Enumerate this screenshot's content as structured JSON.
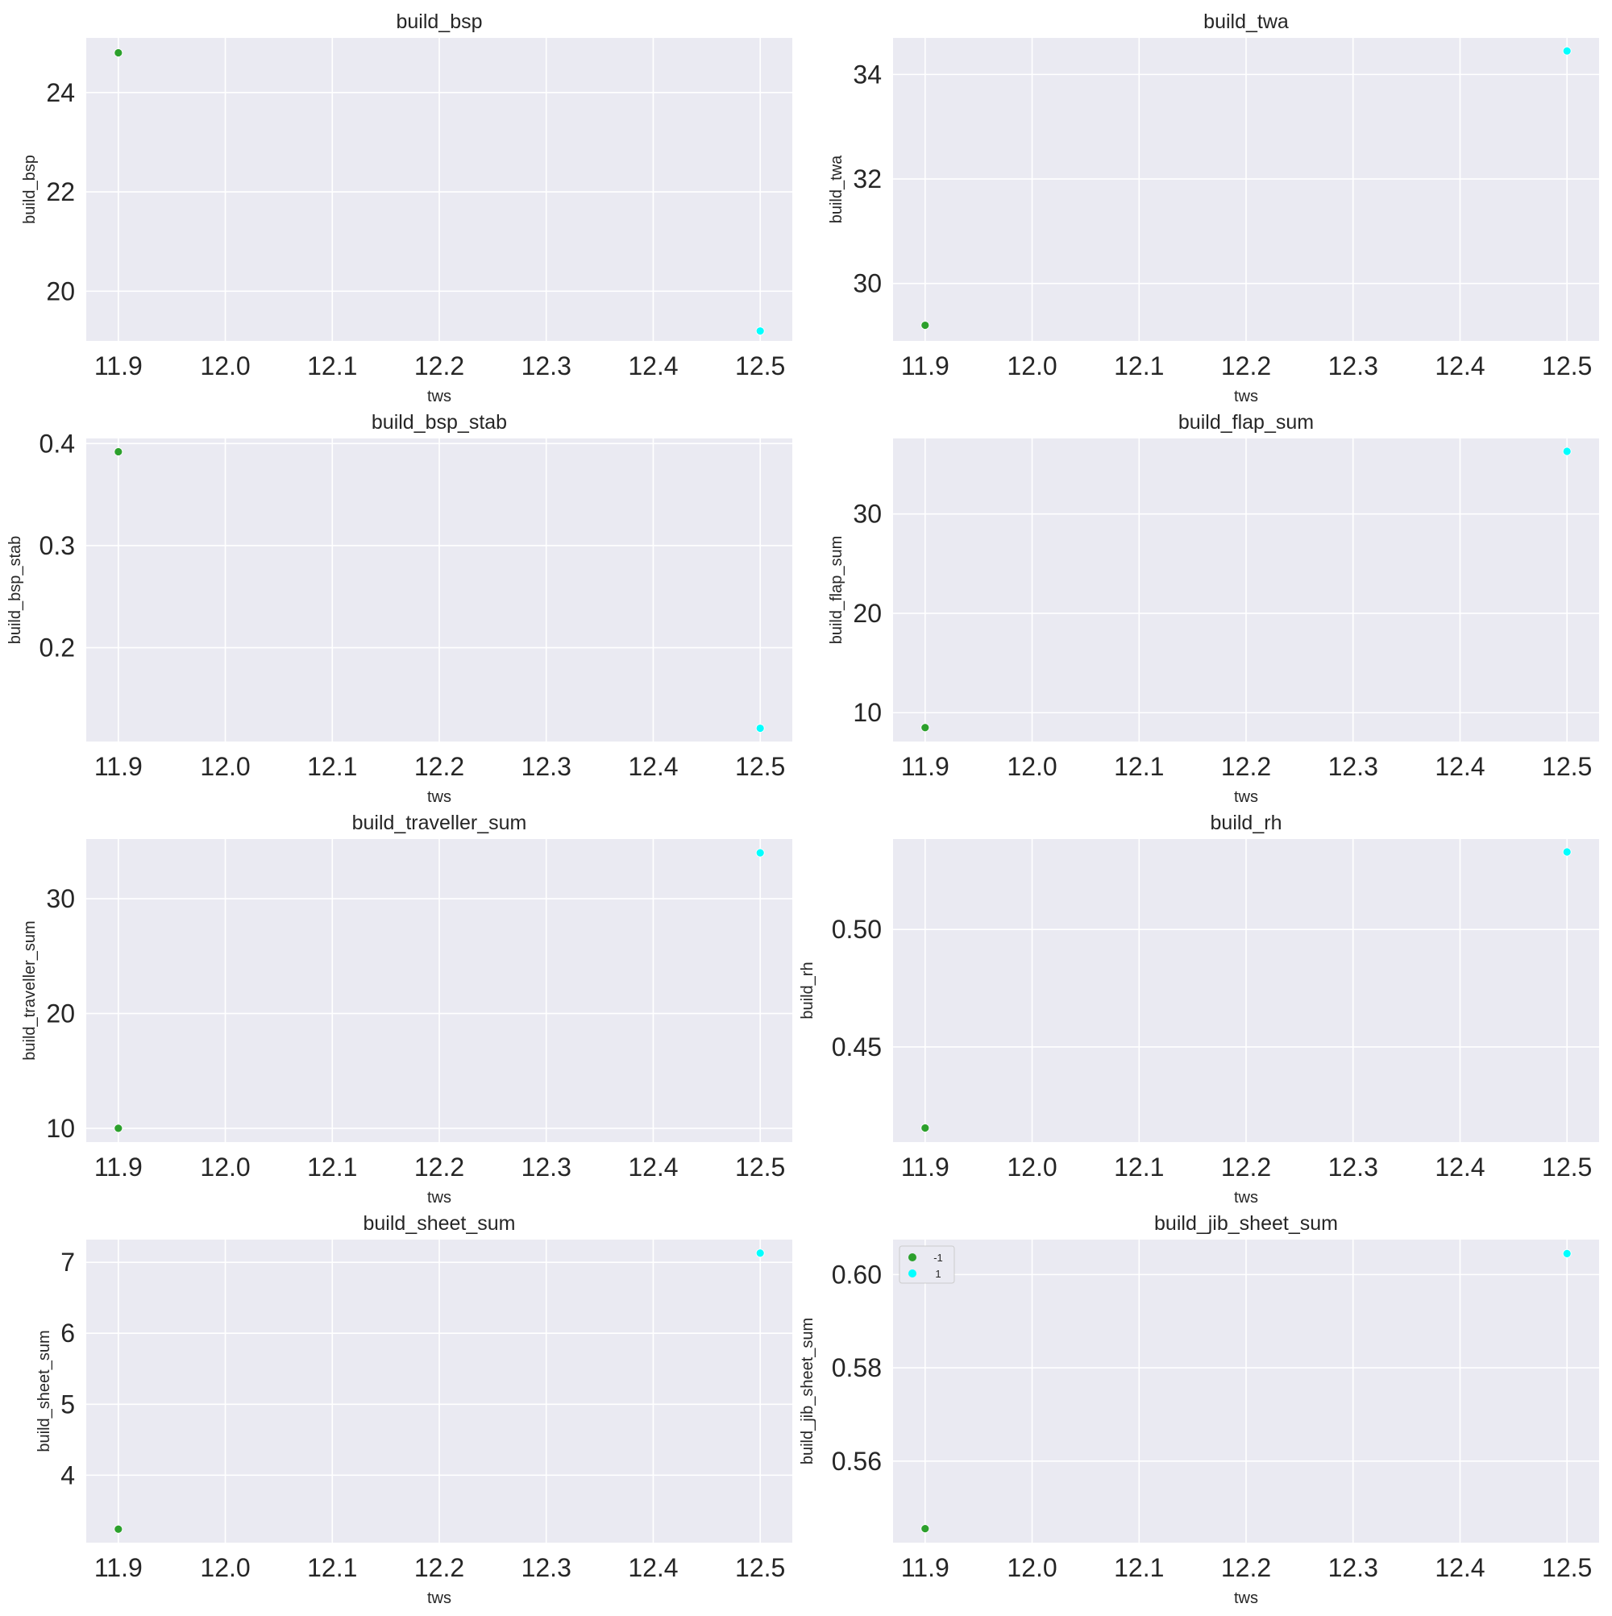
{
  "figure": {
    "background": "#ffffff",
    "panel_background": "#eaeaf2",
    "grid_color": "#ffffff",
    "series_colors": {
      "-1": "#2ca02c",
      "1": "#00ffff"
    }
  },
  "chart_data": [
    {
      "type": "scatter",
      "title": "build_bsp",
      "xlabel": "tws",
      "ylabel": "build_bsp",
      "xlim": [
        11.87,
        12.53
      ],
      "ylim": [
        19.0,
        25.1
      ],
      "xticks": [
        "11.9",
        "12.0",
        "12.1",
        "12.2",
        "12.3",
        "12.4",
        "12.5"
      ],
      "yticks": [
        "20",
        "22",
        "24"
      ],
      "grid": true,
      "series": [
        {
          "hue": "-1",
          "x": [
            11.9
          ],
          "y": [
            24.8
          ]
        },
        {
          "hue": "1",
          "x": [
            12.5
          ],
          "y": [
            19.2
          ]
        }
      ]
    },
    {
      "type": "scatter",
      "title": "build_twa",
      "xlabel": "tws",
      "ylabel": "build_twa",
      "xlim": [
        11.87,
        12.53
      ],
      "ylim": [
        28.9,
        34.7
      ],
      "xticks": [
        "11.9",
        "12.0",
        "12.1",
        "12.2",
        "12.3",
        "12.4",
        "12.5"
      ],
      "yticks": [
        "30",
        "32",
        "34"
      ],
      "grid": true,
      "series": [
        {
          "hue": "-1",
          "x": [
            11.9
          ],
          "y": [
            29.2
          ]
        },
        {
          "hue": "1",
          "x": [
            12.5
          ],
          "y": [
            34.45
          ]
        }
      ]
    },
    {
      "type": "scatter",
      "title": "build_bsp_stab",
      "xlabel": "tws",
      "ylabel": "build_bsp_stab",
      "xlim": [
        11.87,
        12.53
      ],
      "ylim": [
        0.108,
        0.405
      ],
      "xticks": [
        "11.9",
        "12.0",
        "12.1",
        "12.2",
        "12.3",
        "12.4",
        "12.5"
      ],
      "yticks": [
        "0.2",
        "0.3",
        "0.4"
      ],
      "grid": true,
      "series": [
        {
          "hue": "-1",
          "x": [
            11.9
          ],
          "y": [
            0.392
          ]
        },
        {
          "hue": "1",
          "x": [
            12.5
          ],
          "y": [
            0.121
          ]
        }
      ]
    },
    {
      "type": "scatter",
      "title": "build_flap_sum",
      "xlabel": "tws",
      "ylabel": "build_flap_sum",
      "xlim": [
        11.87,
        12.53
      ],
      "ylim": [
        7.1,
        37.6
      ],
      "xticks": [
        "11.9",
        "12.0",
        "12.1",
        "12.2",
        "12.3",
        "12.4",
        "12.5"
      ],
      "yticks": [
        "10",
        "20",
        "30"
      ],
      "grid": true,
      "series": [
        {
          "hue": "-1",
          "x": [
            11.9
          ],
          "y": [
            8.5
          ]
        },
        {
          "hue": "1",
          "x": [
            12.5
          ],
          "y": [
            36.3
          ]
        }
      ]
    },
    {
      "type": "scatter",
      "title": "build_traveller_sum",
      "xlabel": "tws",
      "ylabel": "build_traveller_sum",
      "xlim": [
        11.87,
        12.53
      ],
      "ylim": [
        8.8,
        35.2
      ],
      "xticks": [
        "11.9",
        "12.0",
        "12.1",
        "12.2",
        "12.3",
        "12.4",
        "12.5"
      ],
      "yticks": [
        "10",
        "20",
        "30"
      ],
      "grid": true,
      "series": [
        {
          "hue": "-1",
          "x": [
            11.9
          ],
          "y": [
            10.0
          ]
        },
        {
          "hue": "1",
          "x": [
            12.5
          ],
          "y": [
            34.0
          ]
        }
      ]
    },
    {
      "type": "scatter",
      "title": "build_rh",
      "xlabel": "tws",
      "ylabel": "build_rh",
      "xlim": [
        11.87,
        12.53
      ],
      "ylim": [
        0.4095,
        0.5385
      ],
      "xticks": [
        "11.9",
        "12.0",
        "12.1",
        "12.2",
        "12.3",
        "12.4",
        "12.5"
      ],
      "yticks": [
        "0.45",
        "0.50"
      ],
      "grid": true,
      "series": [
        {
          "hue": "-1",
          "x": [
            11.9
          ],
          "y": [
            0.4155
          ]
        },
        {
          "hue": "1",
          "x": [
            12.5
          ],
          "y": [
            0.533
          ]
        }
      ]
    },
    {
      "type": "scatter",
      "title": "build_sheet_sum",
      "xlabel": "tws",
      "ylabel": "build_sheet_sum",
      "xlim": [
        11.87,
        12.53
      ],
      "ylim": [
        3.05,
        7.32
      ],
      "xticks": [
        "11.9",
        "12.0",
        "12.1",
        "12.2",
        "12.3",
        "12.4",
        "12.5"
      ],
      "yticks": [
        "4",
        "5",
        "6",
        "7"
      ],
      "grid": true,
      "series": [
        {
          "hue": "-1",
          "x": [
            11.9
          ],
          "y": [
            3.24
          ]
        },
        {
          "hue": "1",
          "x": [
            12.5
          ],
          "y": [
            7.13
          ]
        }
      ]
    },
    {
      "type": "scatter",
      "title": "build_jib_sheet_sum",
      "xlabel": "tws",
      "ylabel": "build_jib_sheet_sum",
      "xlim": [
        11.87,
        12.53
      ],
      "ylim": [
        0.5425,
        0.6075
      ],
      "xticks": [
        "11.9",
        "12.0",
        "12.1",
        "12.2",
        "12.3",
        "12.4",
        "12.5"
      ],
      "yticks": [
        "0.56",
        "0.58",
        "0.60"
      ],
      "grid": true,
      "legend": {
        "placement": "top-left",
        "entries": [
          "-1",
          "1"
        ]
      },
      "series": [
        {
          "hue": "-1",
          "x": [
            11.9
          ],
          "y": [
            0.5455
          ]
        },
        {
          "hue": "1",
          "x": [
            12.5
          ],
          "y": [
            0.6045
          ]
        }
      ]
    }
  ]
}
